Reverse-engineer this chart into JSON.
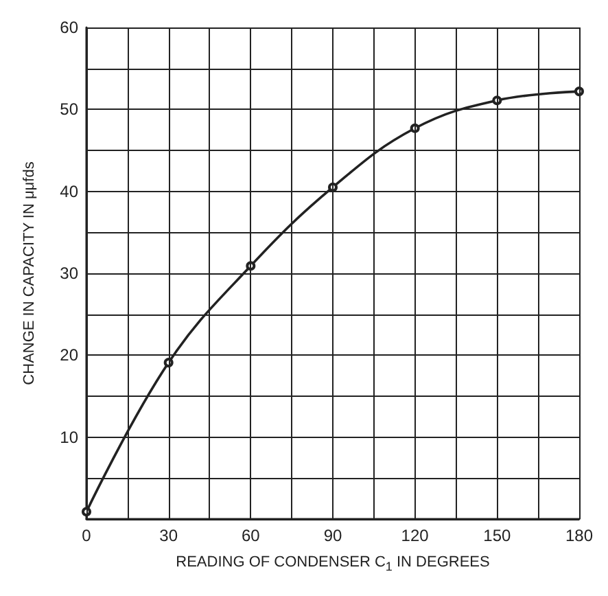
{
  "chart_data": {
    "type": "line",
    "xlabel": "READING OF CONDENSER C$_{1}$ IN DEGREES",
    "ylabel": "CHANGE IN CAPACITY IN μμfds",
    "x": [
      0,
      30,
      60,
      90,
      120,
      150,
      180
    ],
    "series": [
      {
        "color": "#222222",
        "values": [
          0.9,
          19.1,
          30.9,
          40.5,
          47.7,
          51.1,
          52.2
        ]
      }
    ],
    "xlim": [
      0,
      180
    ],
    "xticks": [
      0,
      {
        "value": 15,
        "label": null
      },
      30,
      {
        "value": 45,
        "label": null
      },
      60,
      {
        "value": 75,
        "label": null
      },
      90,
      {
        "value": 105,
        "label": null
      },
      120,
      {
        "value": 135,
        "label": null
      },
      150,
      {
        "value": 165,
        "label": null
      },
      180
    ],
    "ylim": [
      0,
      60
    ],
    "yticks": [
      {
        "value": 0,
        "label": null
      },
      {
        "value": 5,
        "label": null
      },
      10,
      {
        "value": 15,
        "label": null
      },
      20,
      {
        "value": 25,
        "label": null
      },
      30,
      {
        "value": 35,
        "label": null
      },
      40,
      {
        "value": 45,
        "label": null
      },
      50,
      {
        "value": 55,
        "label": null
      },
      60
    ],
    "grid": true,
    "marker": "circle",
    "line_style": "solid"
  }
}
